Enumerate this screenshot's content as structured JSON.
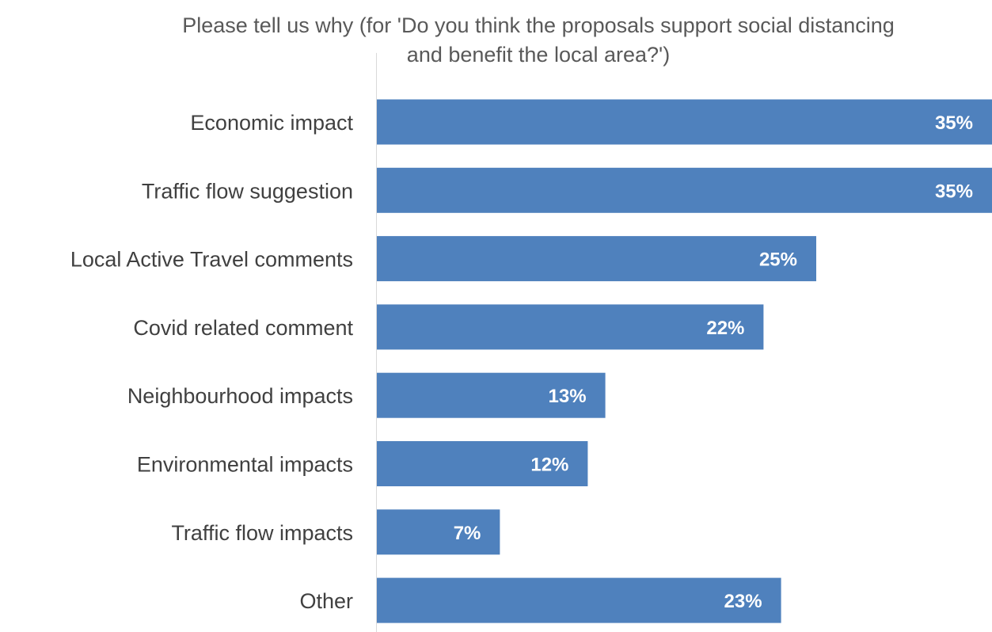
{
  "chart_data": {
    "type": "bar",
    "orientation": "horizontal",
    "title": "Please tell us why (for 'Do you think the proposals support social distancing and benefit the local area?')",
    "title_lines": [
      "Please tell us why (for 'Do you think the proposals support social distancing",
      "and benefit the local area?')"
    ],
    "categories": [
      "Economic impact",
      "Traffic flow suggestion",
      "Local Active Travel comments",
      "Covid related comment",
      "Neighbourhood impacts",
      "Environmental impacts",
      "Traffic flow impacts",
      "Other"
    ],
    "values": [
      35,
      35,
      25,
      22,
      13,
      12,
      7,
      23
    ],
    "data_labels": [
      "35%",
      "35%",
      "25%",
      "22%",
      "13%",
      "12%",
      "7%",
      "23%"
    ],
    "unit": "%",
    "xlim": [
      0,
      35
    ],
    "xlabel": "",
    "ylabel": "",
    "grid": false,
    "legend": "none",
    "bar_color": "#4F81BD",
    "axis_color": "#D9D9D9"
  }
}
